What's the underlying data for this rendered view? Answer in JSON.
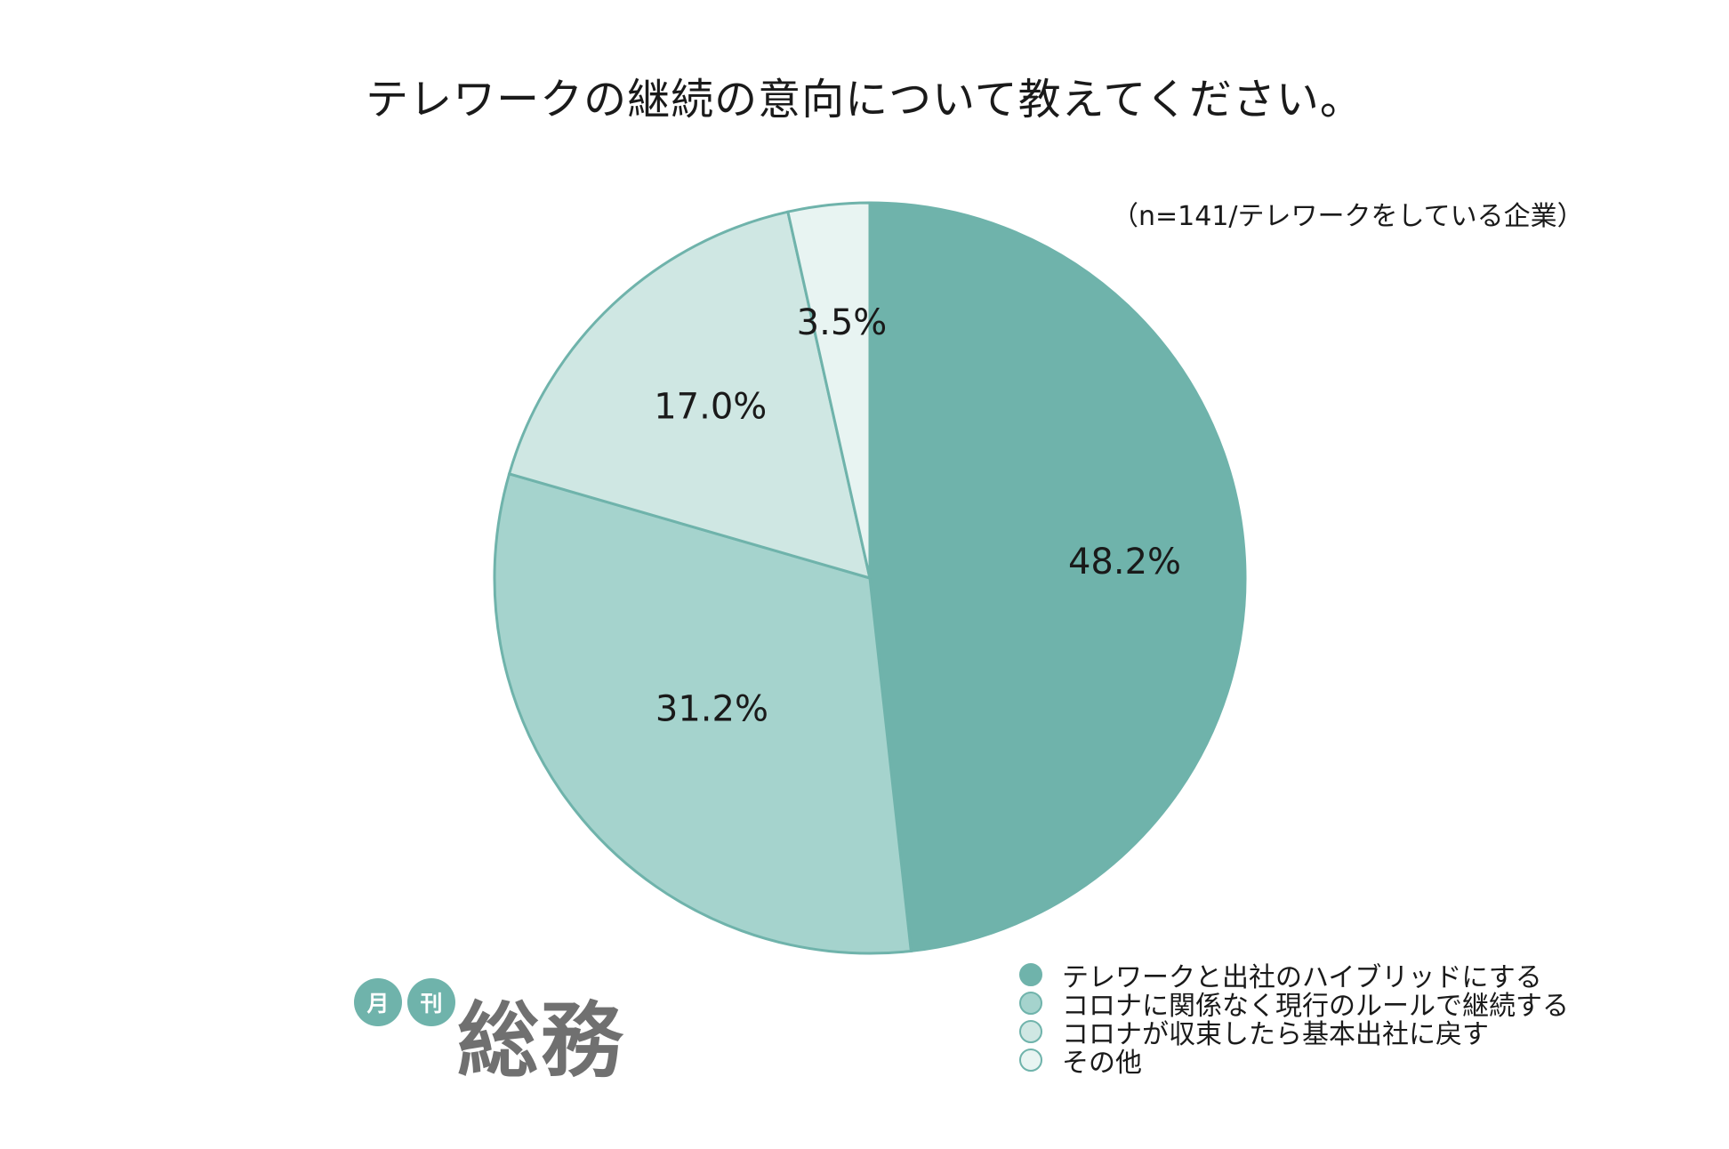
{
  "chart_data": {
    "type": "pie",
    "title": "テレワークの継続の意向について教えてください。",
    "subtitle": "（n=141/テレワークをしている企業）",
    "categories": [
      "テレワークと出社のハイブリッドにする",
      "コロナに関係なく現行のルールで継続する",
      "コロナが収束したら基本出社に戻す",
      "その他"
    ],
    "values": [
      48.2,
      31.2,
      17.0,
      3.5
    ],
    "data_labels": [
      "48.2%",
      "31.2%",
      "17.0%",
      "3.5%"
    ],
    "colors": [
      "#6fb3ab",
      "#a5d3cd",
      "#cfe7e3",
      "#e8f4f2"
    ],
    "slice_stroke": "#6fb3ab",
    "start": "12 o'clock",
    "direction": "clockwise",
    "legend_position": "bottom-right"
  },
  "logo": {
    "badge_1": "月",
    "badge_2": "刊",
    "name": "総務"
  }
}
